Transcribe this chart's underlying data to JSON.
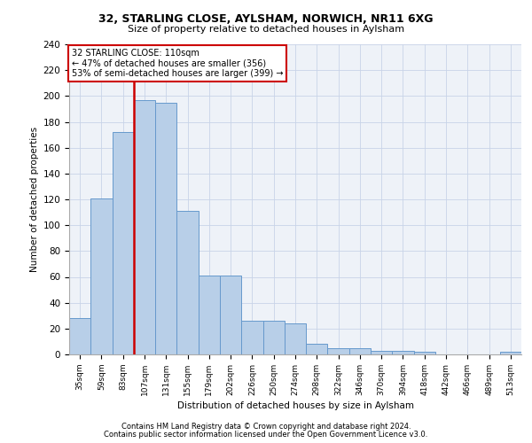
{
  "title1": "32, STARLING CLOSE, AYLSHAM, NORWICH, NR11 6XG",
  "title2": "Size of property relative to detached houses in Aylsham",
  "xlabel": "Distribution of detached houses by size in Aylsham",
  "ylabel": "Number of detached properties",
  "bar_values": [
    28,
    121,
    172,
    197,
    195,
    111,
    61,
    61,
    26,
    26,
    24,
    8,
    5,
    5,
    3,
    3,
    2,
    0,
    0,
    0,
    2
  ],
  "bin_labels": [
    "35sqm",
    "59sqm",
    "83sqm",
    "107sqm",
    "131sqm",
    "155sqm",
    "179sqm",
    "202sqm",
    "226sqm",
    "250sqm",
    "274sqm",
    "298sqm",
    "322sqm",
    "346sqm",
    "370sqm",
    "394sqm",
    "418sqm",
    "442sqm",
    "466sqm",
    "489sqm",
    "513sqm"
  ],
  "bar_color": "#b8cfe8",
  "bar_edge_color": "#6699cc",
  "annotation_line1": "32 STARLING CLOSE: 110sqm",
  "annotation_line2": "← 47% of detached houses are smaller (356)",
  "annotation_line3": "53% of semi-detached houses are larger (399) →",
  "vline_color": "#cc0000",
  "vline_x": 2.5,
  "ylim": [
    0,
    240
  ],
  "yticks": [
    0,
    20,
    40,
    60,
    80,
    100,
    120,
    140,
    160,
    180,
    200,
    220,
    240
  ],
  "footer1": "Contains HM Land Registry data © Crown copyright and database right 2024.",
  "footer2": "Contains public sector information licensed under the Open Government Licence v3.0.",
  "plot_bg_color": "#eef2f8",
  "grid_color": "#c8d4e8"
}
